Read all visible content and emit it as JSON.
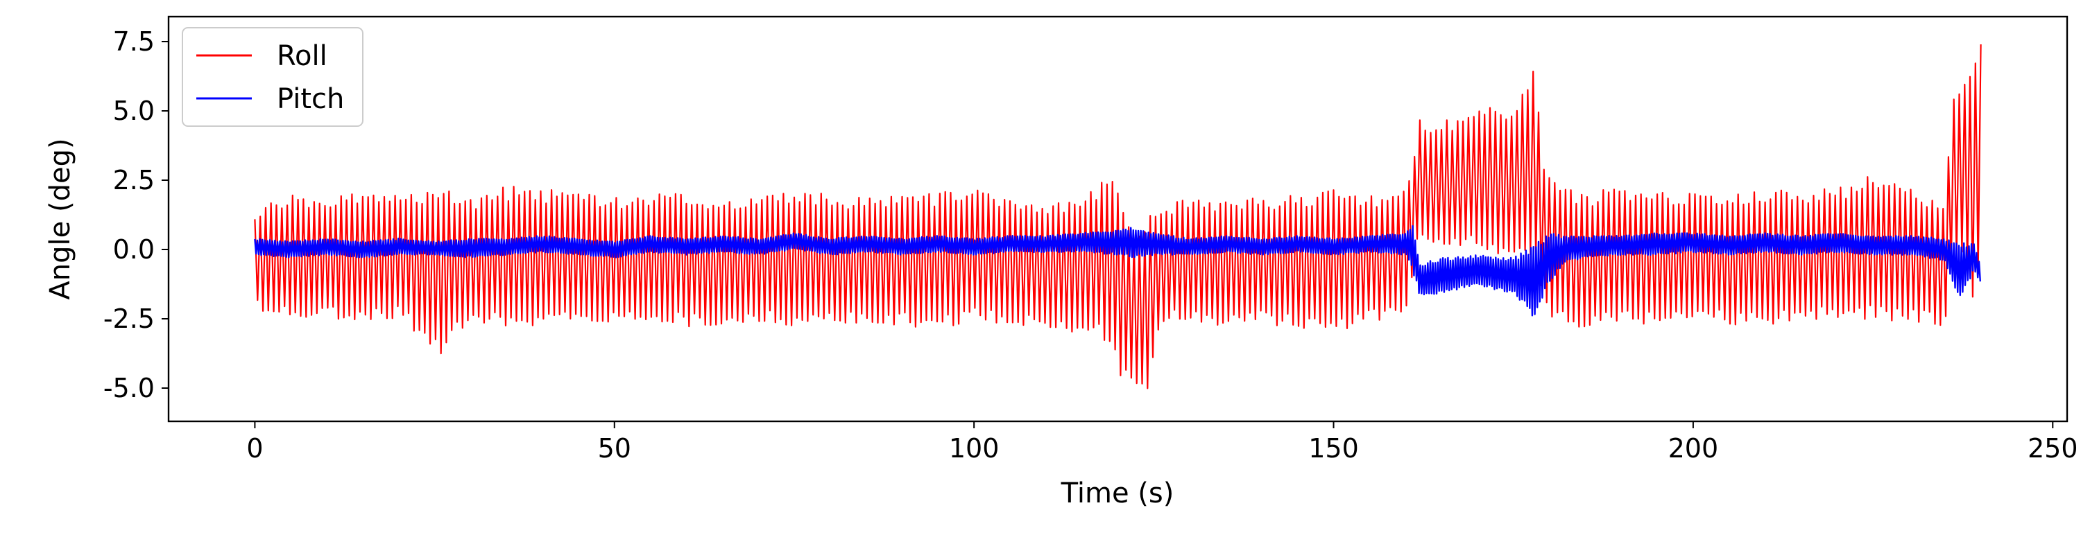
{
  "chart_data": {
    "type": "line",
    "title": "",
    "xlabel": "Time (s)",
    "ylabel": "Angle (deg)",
    "xlim": [
      -12,
      252
    ],
    "ylim": [
      -6.2,
      8.4
    ],
    "xticks": [
      0,
      50,
      100,
      150,
      200,
      250
    ],
    "xtick_labels": [
      "0",
      "50",
      "100",
      "150",
      "200",
      "250"
    ],
    "yticks": [
      -5.0,
      -2.5,
      0.0,
      2.5,
      5.0,
      7.5
    ],
    "ytick_labels": [
      "-5.0",
      "-2.5",
      "0.0",
      "2.5",
      "5.0",
      "7.5"
    ],
    "grid": false,
    "legend_position": "top-left",
    "series": [
      {
        "name": "Roll",
        "color": "#ff0000",
        "x": [
          0,
          5,
          10,
          15,
          20,
          26,
          30,
          35,
          40,
          45,
          50,
          55,
          60,
          65,
          70,
          75,
          80,
          85,
          90,
          95,
          100,
          105,
          110,
          114,
          118,
          120,
          122,
          124,
          126,
          130,
          135,
          140,
          145,
          150,
          155,
          160,
          162,
          165,
          168,
          170,
          172,
          175,
          178,
          179,
          180,
          185,
          190,
          195,
          200,
          205,
          210,
          215,
          220,
          225,
          230,
          235,
          236,
          238,
          239,
          240
        ],
        "upper": [
          1.5,
          2.0,
          1.9,
          2.2,
          2.0,
          2.2,
          1.8,
          2.3,
          2.2,
          2.1,
          1.9,
          2.0,
          2.1,
          1.9,
          2.0,
          2.1,
          2.0,
          1.9,
          2.0,
          2.1,
          2.2,
          1.8,
          1.7,
          1.9,
          2.5,
          2.6,
          1.0,
          1.2,
          1.6,
          2.0,
          1.8,
          1.9,
          2.0,
          2.2,
          2.0,
          2.1,
          4.7,
          4.6,
          4.9,
          5.4,
          5.2,
          4.9,
          6.6,
          3.5,
          2.6,
          2.0,
          2.3,
          2.2,
          2.0,
          2.1,
          2.1,
          2.2,
          2.2,
          2.7,
          2.3,
          1.5,
          5.8,
          6.0,
          7.2,
          7.7
        ],
        "lower": [
          -2.2,
          -2.4,
          -2.5,
          -2.6,
          -2.5,
          -3.8,
          -2.6,
          -2.9,
          -2.8,
          -2.7,
          -2.6,
          -2.7,
          -2.8,
          -2.7,
          -2.6,
          -2.8,
          -2.7,
          -2.7,
          -2.8,
          -2.9,
          -2.6,
          -2.7,
          -2.8,
          -3.0,
          -3.2,
          -4.5,
          -5.4,
          -5.2,
          -2.6,
          -2.7,
          -2.8,
          -2.7,
          -2.8,
          -3.1,
          -2.7,
          -2.2,
          0.5,
          0.0,
          -0.2,
          0.2,
          -0.4,
          -0.6,
          -0.3,
          -1.5,
          -2.7,
          -2.9,
          -2.7,
          -2.8,
          -2.6,
          -2.7,
          -2.8,
          -2.6,
          -2.5,
          -2.6,
          -2.6,
          -2.8,
          -0.8,
          -0.5,
          -2.6,
          -0.5
        ]
      },
      {
        "name": "Pitch",
        "color": "#0000ff",
        "x": [
          0,
          5,
          10,
          15,
          20,
          25,
          30,
          35,
          40,
          45,
          50,
          55,
          60,
          65,
          70,
          75,
          80,
          85,
          90,
          95,
          100,
          105,
          110,
          115,
          120,
          122,
          125,
          130,
          135,
          140,
          145,
          150,
          155,
          160,
          161,
          162,
          165,
          170,
          175,
          178,
          180,
          182,
          185,
          190,
          195,
          200,
          205,
          210,
          215,
          220,
          225,
          230,
          235,
          237,
          239,
          240
        ],
        "upper": [
          0.4,
          0.3,
          0.4,
          0.3,
          0.4,
          0.3,
          0.4,
          0.4,
          0.5,
          0.4,
          0.3,
          0.5,
          0.4,
          0.5,
          0.4,
          0.6,
          0.4,
          0.5,
          0.4,
          0.5,
          0.4,
          0.5,
          0.5,
          0.6,
          0.7,
          0.8,
          0.6,
          0.4,
          0.5,
          0.4,
          0.5,
          0.4,
          0.5,
          0.6,
          1.0,
          -0.5,
          -0.3,
          -0.2,
          -0.3,
          0.2,
          0.6,
          0.5,
          0.5,
          0.5,
          0.6,
          0.6,
          0.5,
          0.6,
          0.5,
          0.6,
          0.5,
          0.5,
          0.4,
          0.2,
          0.3,
          -0.6
        ],
        "lower": [
          -0.2,
          -0.3,
          -0.2,
          -0.3,
          -0.2,
          -0.2,
          -0.3,
          -0.2,
          -0.1,
          -0.2,
          -0.3,
          -0.1,
          -0.2,
          -0.1,
          -0.2,
          0.0,
          -0.2,
          -0.1,
          -0.2,
          -0.1,
          -0.2,
          -0.1,
          -0.1,
          -0.1,
          -0.2,
          -0.3,
          -0.2,
          -0.2,
          -0.1,
          -0.2,
          -0.1,
          -0.2,
          -0.1,
          -0.2,
          -0.8,
          -1.7,
          -1.6,
          -1.3,
          -1.6,
          -2.5,
          -1.2,
          -0.5,
          -0.3,
          -0.2,
          -0.2,
          -0.1,
          -0.2,
          -0.1,
          -0.2,
          -0.1,
          -0.2,
          -0.2,
          -0.4,
          -1.9,
          -0.8,
          -1.2
        ]
      }
    ]
  }
}
